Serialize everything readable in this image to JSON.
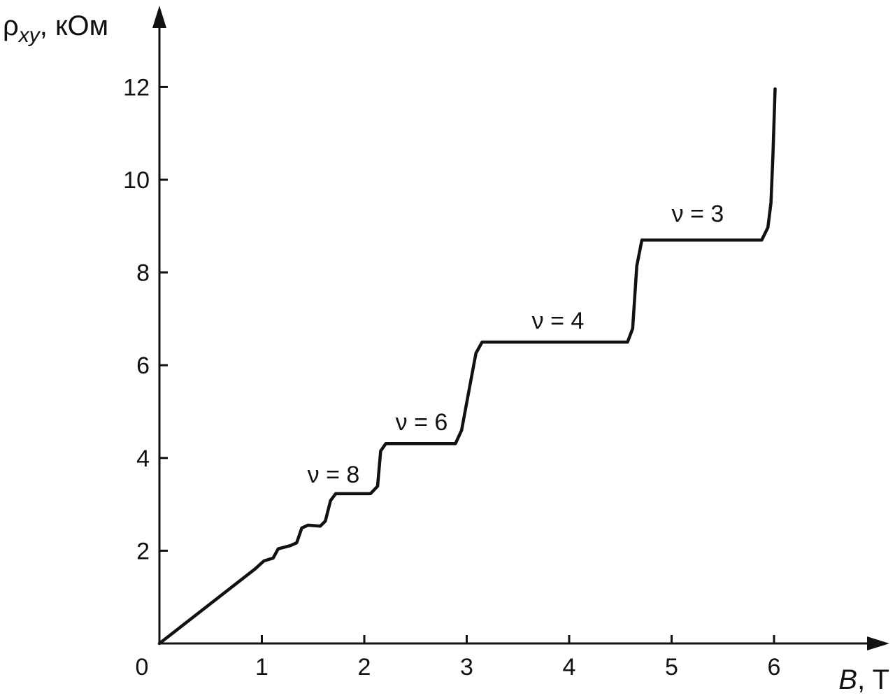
{
  "chart_data": {
    "type": "line",
    "y_label": {
      "symbol": "ρ",
      "subscript": "xy",
      "unit": ", кОм"
    },
    "x_label": {
      "symbol": "B",
      "unit": ", T"
    },
    "x": [
      0,
      0.935,
      1.02,
      1.11,
      1.16,
      1.28,
      1.34,
      1.39,
      1.45,
      1.57,
      1.62,
      1.67,
      1.72,
      2.06,
      2.13,
      2.16,
      2.21,
      2.89,
      2.95,
      3.02,
      3.09,
      3.15,
      4.57,
      4.62,
      4.66,
      4.71,
      5.88,
      5.94,
      5.97,
      5.99,
      6.01
    ],
    "values": [
      0,
      1.61,
      1.78,
      1.84,
      2.04,
      2.11,
      2.17,
      2.49,
      2.55,
      2.53,
      2.64,
      3.08,
      3.23,
      3.23,
      3.39,
      4.15,
      4.31,
      4.31,
      4.6,
      5.43,
      6.26,
      6.5,
      6.5,
      6.79,
      8.14,
      8.7,
      8.7,
      8.97,
      9.5,
      10.56,
      11.96
    ],
    "color": "#111111",
    "xlim": [
      0,
      7.1
    ],
    "ylim": [
      0,
      13.6
    ],
    "xticks": [
      0,
      1,
      2,
      3,
      4,
      5,
      6
    ],
    "yticks": [
      2,
      4,
      6,
      8,
      10,
      12
    ],
    "annotations": [
      "ν = 8",
      "ν = 6",
      "ν = 4",
      "ν = 3"
    ]
  }
}
